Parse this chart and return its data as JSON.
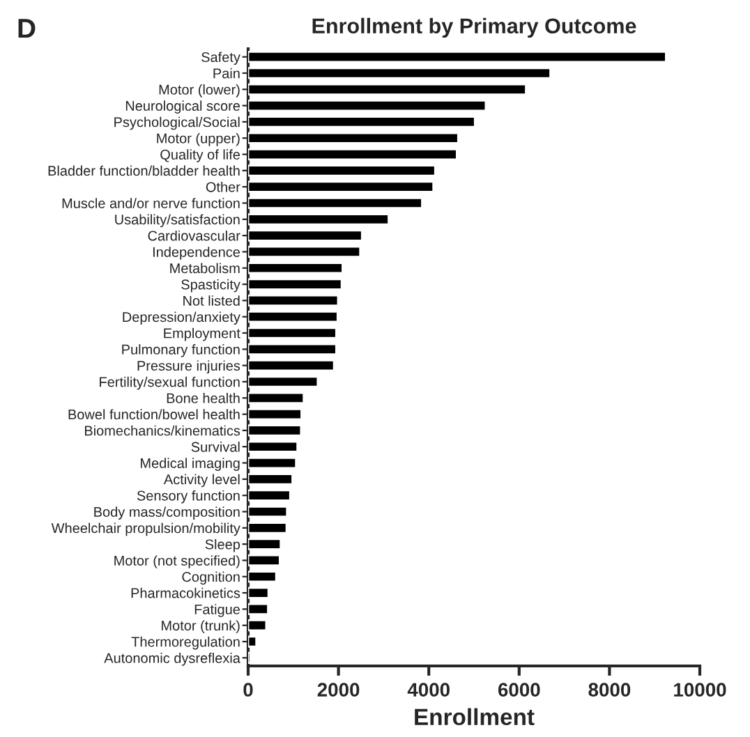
{
  "chart_data": {
    "type": "bar",
    "orientation": "horizontal",
    "title": "Enrollment by Primary Outcome",
    "xlabel": "Enrollment",
    "annotations": [
      "D"
    ],
    "categories": [
      "Safety",
      "Pain",
      "Motor (lower)",
      "Neurological score",
      "Psychological/Social",
      "Motor (upper)",
      "Quality of life",
      "Bladder function/bladder health",
      "Other",
      "Muscle and/or nerve function",
      "Usability/satisfaction",
      "Cardiovascular",
      "Independence",
      "Metabolism",
      "Spasticity",
      "Not listed",
      "Depression/anxiety",
      "Employment",
      "Pulmonary function",
      "Pressure injuries",
      "Fertility/sexual function",
      "Bone health",
      "Bowel function/bowel health",
      "Biomechanics/kinematics",
      "Survival",
      "Medical imaging",
      "Activity level",
      "Sensory function",
      "Body mass/composition",
      "Wheelchair propulsion/mobility",
      "Sleep",
      "Motor (not specified)",
      "Cognition",
      "Pharmacokinetics",
      "Fatigue",
      "Motor (trunk)",
      "Thermoregulation",
      "Autonomic dysreflexia"
    ],
    "values": [
      9250,
      6690,
      6150,
      5260,
      5020,
      4650,
      4620,
      4140,
      4100,
      3850,
      3110,
      2520,
      2480,
      2090,
      2070,
      1990,
      1980,
      1950,
      1950,
      1900,
      1540,
      1230,
      1180,
      1170,
      1090,
      1060,
      980,
      930,
      860,
      850,
      720,
      700,
      620,
      450,
      440,
      400,
      180,
      50
    ],
    "color": "#000000",
    "xlim": [
      0,
      10000
    ],
    "xticks": [
      0,
      2000,
      4000,
      6000,
      8000,
      10000
    ],
    "grid": false,
    "legend": false
  }
}
